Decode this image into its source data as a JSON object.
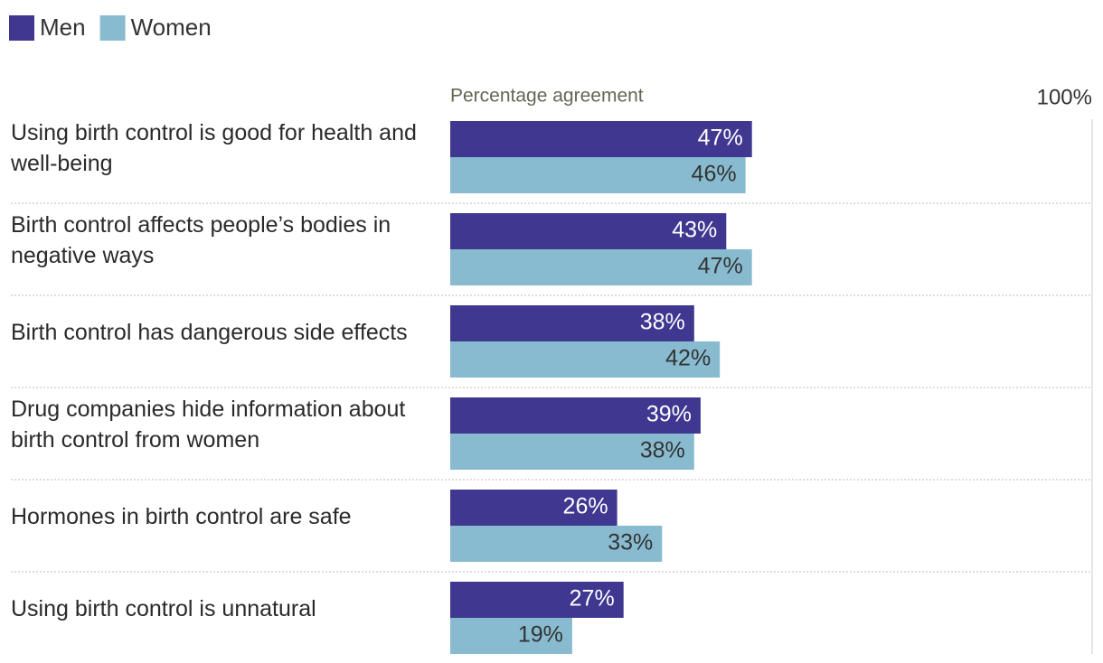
{
  "chart_data": {
    "type": "bar",
    "orientation": "horizontal",
    "x_label": "Percentage agreement",
    "categories": [
      "Using birth control is good for health and well-being",
      "Birth control affects people’s bodies in negative ways",
      "Birth control has dangerous side effects",
      "Drug companies hide information about birth control from women",
      "Hormones in birth control are safe",
      "Using birth control is unnatural"
    ],
    "series": [
      {
        "name": "Men",
        "color": "#3f3790",
        "values": [
          47,
          43,
          38,
          39,
          26,
          27
        ],
        "value_labels": [
          "47%",
          "43%",
          "38%",
          "39%",
          "26%",
          "27%"
        ]
      },
      {
        "name": "Women",
        "color": "#88bbcf",
        "values": [
          46,
          47,
          42,
          38,
          33,
          19
        ],
        "value_labels": [
          "46%",
          "47%",
          "42%",
          "38%",
          "33%",
          "19%"
        ]
      }
    ],
    "xlim": [
      0,
      100
    ],
    "xticks": [
      {
        "value": 100,
        "label": "100%"
      }
    ],
    "legend": "top-left"
  }
}
